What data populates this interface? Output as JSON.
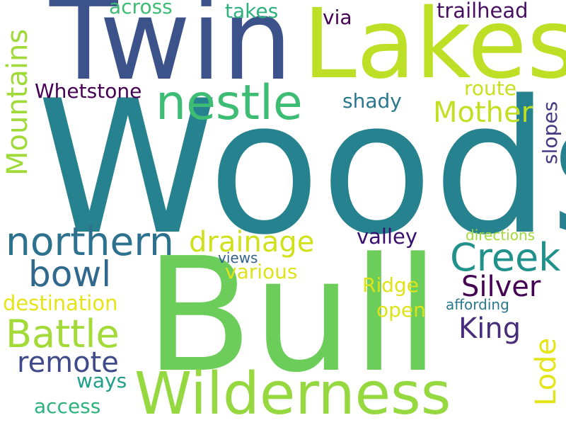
{
  "words": {
    "woods": {
      "text": "Woods",
      "color": "#26828e"
    },
    "bull": {
      "text": "Bull",
      "color": "#6ccd5a"
    },
    "twin": {
      "text": "Twin",
      "color": "#3b528b"
    },
    "lakes": {
      "text": "Lakes",
      "color": "#bddf26"
    },
    "wilderness": {
      "text": "Wilderness",
      "color": "#95d840"
    },
    "nestle": {
      "text": "nestle",
      "color": "#3dbc74"
    },
    "northern": {
      "text": "northern",
      "color": "#2c728e"
    },
    "creek": {
      "text": "Creek",
      "color": "#21918c"
    },
    "battle": {
      "text": "Battle",
      "color": "#a2da37"
    },
    "bowl": {
      "text": "bowl",
      "color": "#31688e"
    },
    "drainage": {
      "text": "drainage",
      "color": "#d0e11c"
    },
    "mountains": {
      "text": "Mountains",
      "color": "#a0da39"
    },
    "mother": {
      "text": "Mother",
      "color": "#c2df23"
    },
    "silver": {
      "text": "Silver",
      "color": "#440154"
    },
    "king": {
      "text": "King",
      "color": "#472d7b"
    },
    "remote": {
      "text": "remote",
      "color": "#3e4a89"
    },
    "lode": {
      "text": "Lode",
      "color": "#e5e419"
    },
    "trailhead": {
      "text": "trailhead",
      "color": "#471063"
    },
    "whetstone": {
      "text": "Whetstone",
      "color": "#440154"
    },
    "valley": {
      "text": "valley",
      "color": "#3b0f70"
    },
    "destination": {
      "text": "destination",
      "color": "#e5e419"
    },
    "various": {
      "text": "various",
      "color": "#dde318"
    },
    "ridge": {
      "text": "Ridge",
      "color": "#dde318"
    },
    "open": {
      "text": "open",
      "color": "#dde318"
    },
    "shady": {
      "text": "shady",
      "color": "#2a788e"
    },
    "route": {
      "text": "route",
      "color": "#c8e020"
    },
    "slopes": {
      "text": "slopes",
      "color": "#443983"
    },
    "takes": {
      "text": "takes",
      "color": "#2db27d"
    },
    "via": {
      "text": "via",
      "color": "#440154"
    },
    "across": {
      "text": "across",
      "color": "#3dbc74"
    },
    "access": {
      "text": "access",
      "color": "#2db27d"
    },
    "ways": {
      "text": "ways",
      "color": "#1f9e89"
    },
    "views": {
      "text": "views",
      "color": "#33638d"
    },
    "affording": {
      "text": "affording",
      "color": "#2a788e"
    },
    "directions": {
      "text": "directions",
      "color": "#a0da39"
    }
  }
}
